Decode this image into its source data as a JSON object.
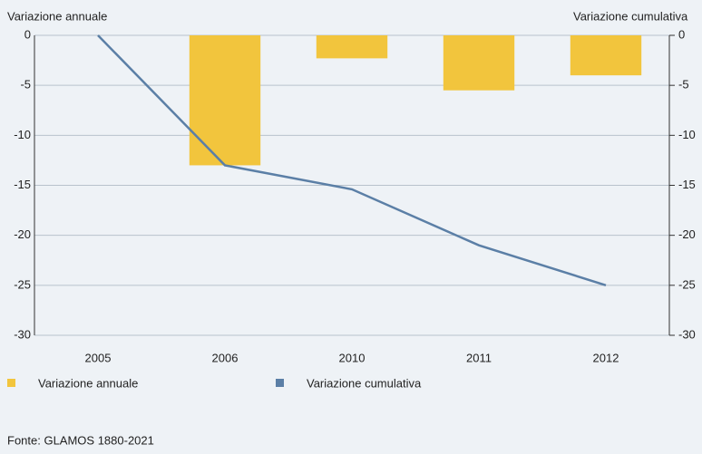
{
  "chart_data": {
    "type": "bar-line",
    "y_axis_label": "Variazione annuale",
    "y2_axis_label": "Variazione cumulativa",
    "categories": [
      "2005",
      "2006",
      "2010",
      "2011",
      "2012"
    ],
    "series": [
      {
        "name": "Variazione annuale",
        "color": "#f2c53d",
        "type": "bar",
        "values": [
          null,
          -13,
          -2.3,
          -5.5,
          -4.0
        ]
      },
      {
        "name": "Variazione cumulativa",
        "color": "#5b7fa6",
        "type": "line",
        "axis": "y2",
        "values": [
          0,
          -13,
          -15.4,
          -21.0,
          -25.0
        ]
      }
    ],
    "ylim": [
      -30,
      0
    ],
    "yticks": [
      0,
      -5,
      -10,
      -15,
      -20,
      -25,
      -30
    ],
    "y2lim": [
      -30,
      0
    ],
    "y2ticks": [
      0,
      -5,
      -10,
      -15,
      -20,
      -25,
      -30
    ],
    "grid": true,
    "source": "Fonte: GLAMOS 1880-2021"
  }
}
